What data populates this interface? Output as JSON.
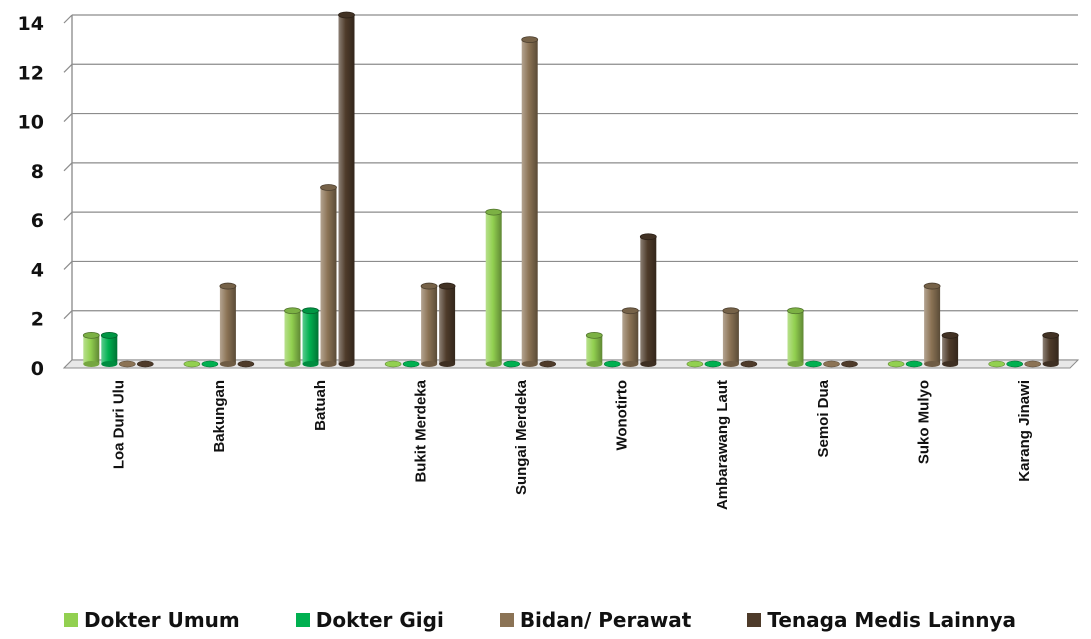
{
  "colors": {
    "dokter_umum": "#92d050",
    "dokter_gigi": "#00b050",
    "bidan_perawat": "#8b7355",
    "tenaga_medis": "#4e3b2a"
  },
  "chart_data": {
    "type": "bar",
    "title": "",
    "xlabel": "",
    "ylabel": "",
    "ylim": [
      0,
      14
    ],
    "yticks": [
      0,
      2,
      4,
      6,
      8,
      10,
      12,
      14
    ],
    "ytick_labels": [
      "0",
      "2",
      "4",
      "6",
      "8",
      "10",
      "12",
      "14"
    ],
    "grid": true,
    "legend_position": "bottom",
    "categories": [
      "Loa Duri Ulu",
      "Bakungan",
      "Batuah",
      "Bukit Merdeka",
      "Sungai Merdeka",
      "Wonotirto",
      "Ambarawang Laut",
      "Semoi Dua",
      "Suko Mulyo",
      "Karang Jinawi"
    ],
    "series": [
      {
        "name": "Dokter Umum",
        "color": "#92d050",
        "values": [
          1,
          0,
          2,
          0,
          6,
          1,
          0,
          2,
          0,
          0
        ]
      },
      {
        "name": "Dokter Gigi",
        "color": "#00b050",
        "values": [
          1,
          0,
          2,
          0,
          0,
          0,
          0,
          0,
          0,
          0
        ]
      },
      {
        "name": "Bidan/ Perawat",
        "color": "#8b7355",
        "values": [
          0,
          3,
          7,
          3,
          13,
          2,
          2,
          0,
          3,
          0
        ]
      },
      {
        "name": "Tenaga Medis Lainnya",
        "color": "#4e3b2a",
        "values": [
          0,
          0,
          14,
          3,
          0,
          5,
          0,
          0,
          1,
          1
        ]
      }
    ]
  }
}
